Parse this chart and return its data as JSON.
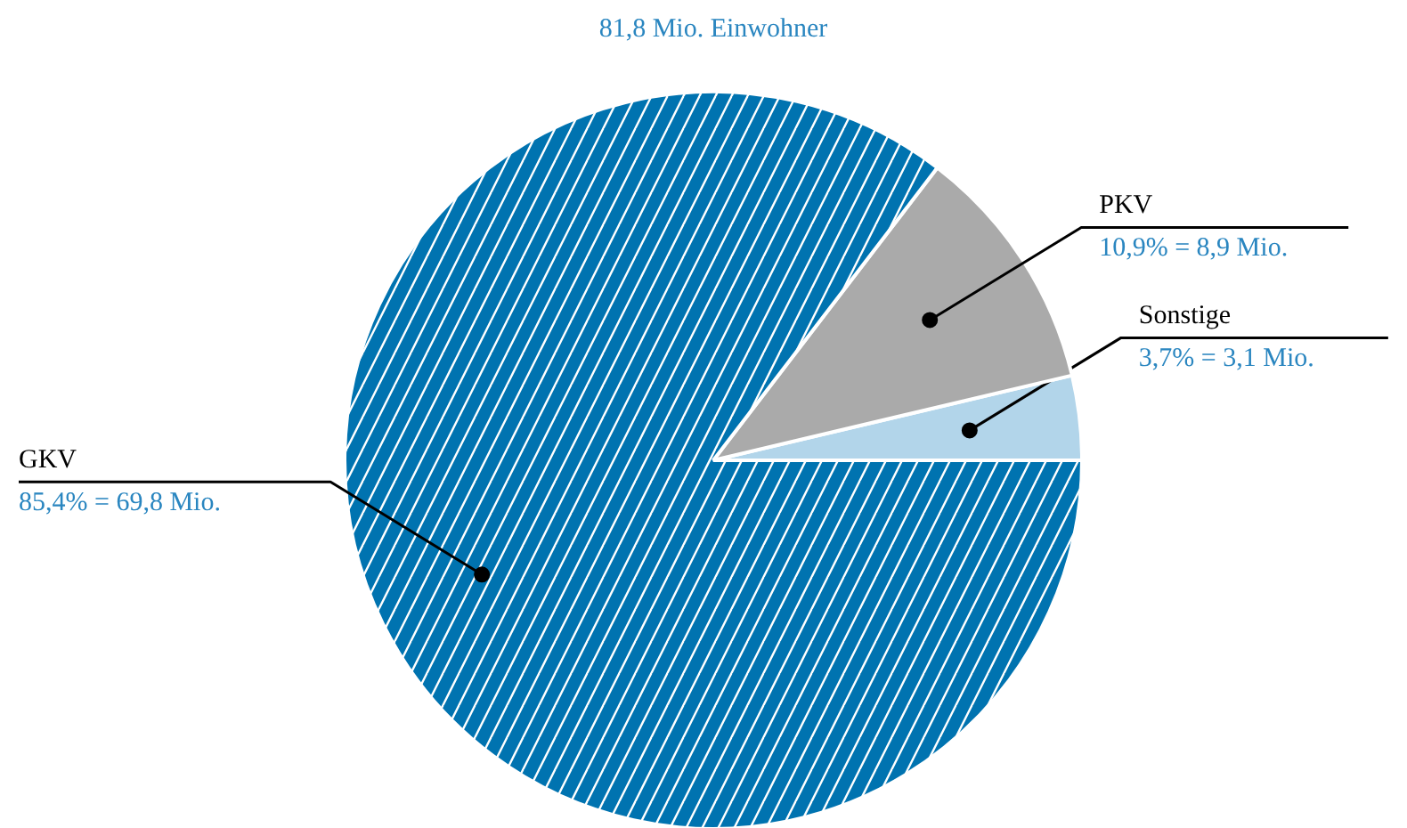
{
  "chart_data": {
    "type": "pie",
    "title": "81,8 Mio. Einwohner",
    "categories": [
      "GKV",
      "PKV",
      "Sonstige"
    ],
    "values": [
      85.4,
      10.9,
      3.7
    ],
    "colors": [
      "#0073b0",
      "#aaaaaa",
      "#b2d5ea"
    ],
    "value_labels": [
      "85,4% = 69,8 Mio.",
      "10,9% = 8,9 Mio.",
      "3,7% = 3,1 Mio."
    ]
  }
}
